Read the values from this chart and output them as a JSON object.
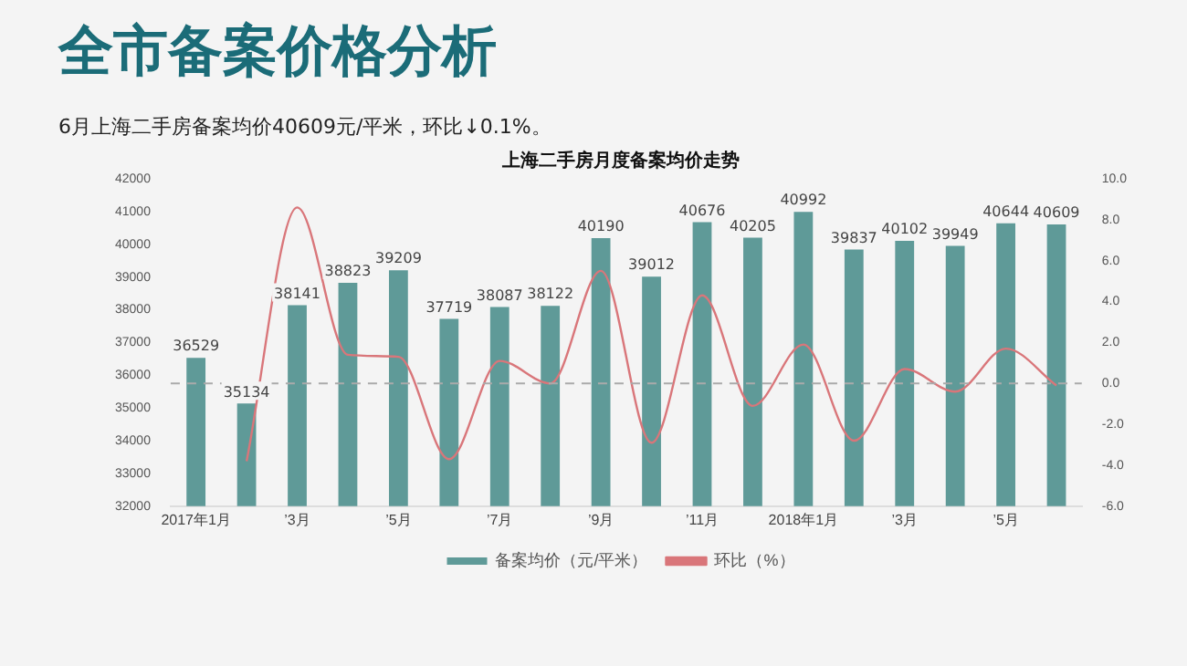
{
  "chart_data": {
    "type": "bar",
    "title": "全市备案价格分析",
    "subtitle": "6月上海二手房备案均价40609元/平米，环比↓0.1%。",
    "annotations": [
      "上海二手房月度备案均价走势"
    ],
    "categories": [
      "2017年1月",
      null,
      "’3月",
      null,
      "’5月",
      null,
      "’7月",
      null,
      "’9月",
      null,
      "’11月",
      null,
      "2018年1月",
      null,
      "’3月",
      null,
      "’5月",
      null
    ],
    "series": [
      {
        "name": "备案均价（元/平米）",
        "color": "#5f9a98",
        "values": [
          36529,
          35134,
          38141,
          38823,
          39209,
          37719,
          38087,
          38122,
          40190,
          39012,
          40676,
          40205,
          40992,
          39837,
          40102,
          39949,
          40644,
          40609
        ],
        "value_labels": [
          "36529",
          "35134",
          "38141",
          "38823",
          "39209",
          "37719",
          "38087",
          "38122",
          "40190",
          "39012",
          "40676",
          "40205",
          "40992",
          "39837",
          "40102",
          "39949",
          "40644",
          "40609"
        ]
      },
      {
        "name": "环比（%）",
        "type": "line",
        "axis": "y2",
        "color": "#d9767a",
        "marker": "none",
        "values": [
          null,
          -3.8,
          8.6,
          1.4,
          1.3,
          -3.7,
          1.1,
          0.0,
          5.5,
          -2.9,
          4.3,
          -1.1,
          1.9,
          -2.8,
          0.7,
          -0.4,
          1.7,
          -0.1
        ]
      }
    ],
    "ylim": [
      32000,
      42000
    ],
    "yticks": [
      32000,
      33000,
      34000,
      35000,
      36000,
      37000,
      38000,
      39000,
      40000,
      41000,
      42000
    ],
    "y2lim": [
      -6,
      10
    ],
    "y2ticks": [
      {
        "value": -6,
        "label": "-6.0"
      },
      {
        "value": -4,
        "label": "-4.0"
      },
      {
        "value": -2,
        "label": "-2.0"
      },
      {
        "value": 0,
        "label": "0.0"
      },
      {
        "value": 2,
        "label": "2.0"
      },
      {
        "value": 4,
        "label": "4.0"
      },
      {
        "value": 6,
        "label": "6.0"
      },
      {
        "value": 8,
        "label": "8.0"
      },
      {
        "value": 10,
        "label": "10.0"
      }
    ],
    "ref_lines": [
      {
        "axis": "y2",
        "value": 0,
        "color": "#aaaaaa",
        "line_style": "dashed"
      }
    ],
    "grid": false,
    "legend": "bottom"
  }
}
